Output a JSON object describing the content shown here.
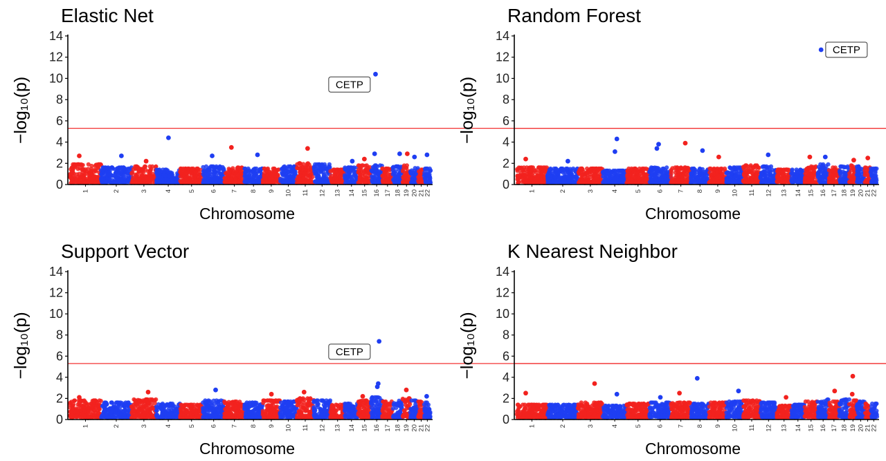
{
  "colors": {
    "red": "#f2221e",
    "blue": "#1f3ef2",
    "threshold": "#f23030",
    "axis": "#000000"
  },
  "ylabel": "−log₁₀(p)",
  "xlabel": "Chromosome",
  "chromosomes": [
    "1",
    "2",
    "3",
    "4",
    "5",
    "6",
    "7",
    "8",
    "9",
    "10",
    "11",
    "12",
    "13",
    "14",
    "15",
    "16",
    "17",
    "18",
    "19",
    "20",
    "21",
    "22"
  ],
  "chart_data": [
    {
      "type": "scatter",
      "title": "Elastic Net",
      "xlabel": "Chromosome",
      "ylabel": "−log₁₀(p)",
      "ylim": [
        0,
        14
      ],
      "yticks": [
        0,
        2,
        4,
        6,
        8,
        10,
        12,
        14
      ],
      "threshold": 5.3,
      "background_max": [
        1.9,
        1.6,
        1.7,
        1.4,
        1.5,
        1.7,
        1.6,
        1.5,
        1.5,
        1.7,
        2.0,
        1.9,
        1.4,
        1.6,
        1.8,
        1.8,
        1.5,
        1.7,
        1.8,
        1.6,
        1.4,
        1.5
      ],
      "peaks": [
        {
          "chrom": "1",
          "y": 2.7
        },
        {
          "chrom": "2",
          "y": 2.7
        },
        {
          "chrom": "3",
          "y": 2.2
        },
        {
          "chrom": "4",
          "y": 4.4
        },
        {
          "chrom": "6",
          "y": 2.7
        },
        {
          "chrom": "7",
          "y": 3.5
        },
        {
          "chrom": "8",
          "y": 2.8
        },
        {
          "chrom": "11",
          "y": 3.4
        },
        {
          "chrom": "14",
          "y": 2.2
        },
        {
          "chrom": "15",
          "y": 2.4
        },
        {
          "chrom": "16",
          "y": 10.4
        },
        {
          "chrom": "16",
          "y": 2.9
        },
        {
          "chrom": "18",
          "y": 2.9
        },
        {
          "chrom": "19",
          "y": 2.9
        },
        {
          "chrom": "20",
          "y": 2.6
        },
        {
          "chrom": "22",
          "y": 2.8
        }
      ],
      "annotation": {
        "text": "CETP",
        "chrom": "16",
        "y": 10.4,
        "side": "left"
      }
    },
    {
      "type": "scatter",
      "title": "Random Forest",
      "xlabel": "Chromosome",
      "ylabel": "−log₁₀(p)",
      "ylim": [
        0,
        14
      ],
      "yticks": [
        0,
        2,
        4,
        6,
        8,
        10,
        12,
        14
      ],
      "threshold": 5.3,
      "background_max": [
        1.6,
        1.5,
        1.5,
        1.3,
        1.5,
        1.6,
        1.6,
        1.5,
        1.5,
        1.6,
        1.8,
        1.7,
        1.4,
        1.4,
        1.7,
        1.9,
        1.6,
        1.7,
        1.8,
        1.7,
        1.6,
        1.5
      ],
      "peaks": [
        {
          "chrom": "1",
          "y": 2.4
        },
        {
          "chrom": "2",
          "y": 2.2
        },
        {
          "chrom": "4",
          "y": 4.3
        },
        {
          "chrom": "4",
          "y": 3.1
        },
        {
          "chrom": "6",
          "y": 3.8
        },
        {
          "chrom": "6",
          "y": 3.4
        },
        {
          "chrom": "7",
          "y": 3.9
        },
        {
          "chrom": "8",
          "y": 3.2
        },
        {
          "chrom": "9",
          "y": 2.6
        },
        {
          "chrom": "12",
          "y": 2.8
        },
        {
          "chrom": "15",
          "y": 2.6
        },
        {
          "chrom": "16",
          "y": 12.7
        },
        {
          "chrom": "16",
          "y": 2.6
        },
        {
          "chrom": "19",
          "y": 2.3
        },
        {
          "chrom": "21",
          "y": 2.5
        }
      ],
      "annotation": {
        "text": "CETP",
        "chrom": "16",
        "y": 12.7,
        "side": "right"
      }
    },
    {
      "type": "scatter",
      "title": "Support Vector",
      "xlabel": "Chromosome",
      "ylabel": "−log₁₀(p)",
      "ylim": [
        0,
        14
      ],
      "yticks": [
        0,
        2,
        4,
        6,
        8,
        10,
        12,
        14
      ],
      "threshold": 5.3,
      "background_max": [
        1.8,
        1.6,
        1.9,
        1.5,
        1.4,
        1.8,
        1.7,
        1.6,
        1.8,
        1.7,
        2.0,
        1.8,
        1.4,
        1.5,
        1.8,
        2.1,
        1.7,
        1.8,
        2.0,
        1.8,
        1.7,
        1.6
      ],
      "peaks": [
        {
          "chrom": "1",
          "y": 2.1
        },
        {
          "chrom": "3",
          "y": 2.6
        },
        {
          "chrom": "6",
          "y": 2.8
        },
        {
          "chrom": "9",
          "y": 2.4
        },
        {
          "chrom": "11",
          "y": 2.6
        },
        {
          "chrom": "15",
          "y": 2.2
        },
        {
          "chrom": "16",
          "y": 7.4
        },
        {
          "chrom": "16",
          "y": 3.4
        },
        {
          "chrom": "16",
          "y": 3.1
        },
        {
          "chrom": "19",
          "y": 2.8
        },
        {
          "chrom": "22",
          "y": 2.2
        }
      ],
      "annotation": {
        "text": "CETP",
        "chrom": "16",
        "y": 7.4,
        "side": "left"
      }
    },
    {
      "type": "scatter",
      "title": "K Nearest Neighbor",
      "xlabel": "Chromosome",
      "ylabel": "−log₁₀(p)",
      "ylim": [
        0,
        14
      ],
      "yticks": [
        0,
        2,
        4,
        6,
        8,
        10,
        12,
        14
      ],
      "threshold": 5.3,
      "background_max": [
        1.4,
        1.4,
        1.6,
        1.3,
        1.5,
        1.6,
        1.6,
        1.5,
        1.6,
        1.7,
        1.8,
        1.6,
        1.3,
        1.4,
        1.7,
        1.9,
        1.7,
        1.9,
        1.8,
        1.7,
        1.5,
        1.5
      ],
      "peaks": [
        {
          "chrom": "1",
          "y": 2.5
        },
        {
          "chrom": "3",
          "y": 3.4
        },
        {
          "chrom": "4",
          "y": 2.4
        },
        {
          "chrom": "6",
          "y": 2.1
        },
        {
          "chrom": "7",
          "y": 2.5
        },
        {
          "chrom": "8",
          "y": 3.9
        },
        {
          "chrom": "10",
          "y": 2.7
        },
        {
          "chrom": "13",
          "y": 2.1
        },
        {
          "chrom": "17",
          "y": 2.7
        },
        {
          "chrom": "19",
          "y": 4.1
        },
        {
          "chrom": "19",
          "y": 2.4
        }
      ]
    }
  ]
}
